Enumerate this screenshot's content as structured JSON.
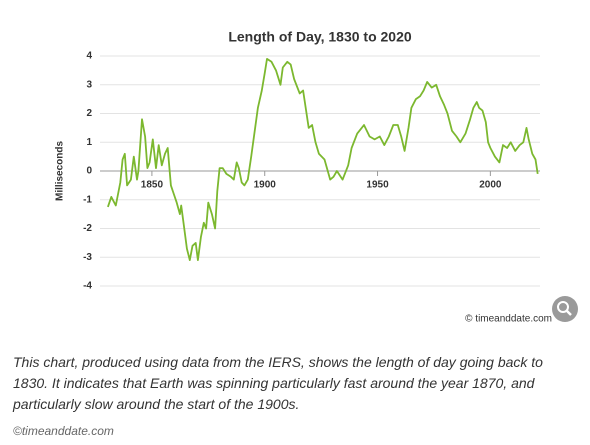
{
  "chart_data": {
    "type": "line",
    "title": "Length of Day, 1830 to 2020",
    "y_label": "Milliseconds",
    "x": [
      1830.5,
      1832,
      1834,
      1836,
      1837,
      1838,
      1839,
      1840.7,
      1842,
      1843.4,
      1844,
      1845.6,
      1847,
      1848,
      1849,
      1850.4,
      1851.8,
      1853,
      1854.4,
      1855.8,
      1857,
      1858.4,
      1859.7,
      1861,
      1862.4,
      1863,
      1864,
      1865.5,
      1866.8,
      1868,
      1869.4,
      1870.4,
      1871.7,
      1873,
      1874,
      1875,
      1876.6,
      1878,
      1879,
      1880,
      1881.4,
      1883,
      1885,
      1886.3,
      1887.6,
      1888.5,
      1889.8,
      1891,
      1892.5,
      1894,
      1897,
      1898.7,
      1900,
      1901,
      1903,
      1905,
      1907,
      1908,
      1910,
      1911.5,
      1913,
      1915.5,
      1917,
      1919.5,
      1921,
      1922.5,
      1924,
      1926.5,
      1929,
      1930.5,
      1932,
      1934.5,
      1937,
      1938.5,
      1941,
      1943,
      1944,
      1946.5,
      1948.7,
      1951,
      1953,
      1955,
      1957,
      1959,
      1960.5,
      1962,
      1963.7,
      1965,
      1967,
      1968.8,
      1970.4,
      1972,
      1974,
      1976,
      1977.7,
      1979.5,
      1981,
      1983,
      1985,
      1986.7,
      1989,
      1991,
      1992.5,
      1994,
      1995,
      1996.5,
      1998,
      1999,
      2000,
      2002,
      2004,
      2005.6,
      2007.4,
      2009,
      2011,
      2013,
      2014.6,
      2016,
      2017,
      2018.6,
      2020,
      2021
    ],
    "values": [
      -1.25,
      -0.9,
      -1.2,
      -0.4,
      0.4,
      0.6,
      -0.5,
      -0.3,
      0.5,
      -0.3,
      0.0,
      1.8,
      1.2,
      0.1,
      0.3,
      1.1,
      0.1,
      0.9,
      0.2,
      0.6,
      0.8,
      -0.5,
      -0.8,
      -1.1,
      -1.5,
      -1.2,
      -1.8,
      -2.7,
      -3.1,
      -2.6,
      -2.5,
      -3.1,
      -2.3,
      -1.8,
      -2.0,
      -1.1,
      -1.5,
      -2.0,
      -0.7,
      0.1,
      0.1,
      -0.1,
      -0.2,
      -0.3,
      0.3,
      0.1,
      -0.4,
      -0.5,
      -0.3,
      0.5,
      2.2,
      2.8,
      3.4,
      3.9,
      3.8,
      3.5,
      3.0,
      3.6,
      3.8,
      3.7,
      3.2,
      2.7,
      2.8,
      1.5,
      1.6,
      1.0,
      0.6,
      0.4,
      -0.3,
      -0.2,
      0.0,
      -0.3,
      0.2,
      0.8,
      1.3,
      1.5,
      1.6,
      1.2,
      1.1,
      1.2,
      0.9,
      1.2,
      1.6,
      1.6,
      1.2,
      0.7,
      1.5,
      2.2,
      2.5,
      2.6,
      2.8,
      3.1,
      2.9,
      3.0,
      2.6,
      2.3,
      2.0,
      1.4,
      1.2,
      1.0,
      1.3,
      1.8,
      2.2,
      2.4,
      2.2,
      2.1,
      1.7,
      1.0,
      0.8,
      0.5,
      0.3,
      0.9,
      0.8,
      1.0,
      0.7,
      0.9,
      1.0,
      1.5,
      1.1,
      0.6,
      0.4,
      -0.1
    ],
    "color": "#7cb82f",
    "xlim": [
      1827,
      2022
    ],
    "ylim": [
      -4,
      4
    ],
    "xticks": [
      1850,
      1900,
      1950,
      2000
    ],
    "yticks": [
      4,
      3,
      2,
      1,
      0,
      -1,
      -2,
      -3,
      -4
    ],
    "grid": true
  },
  "watermark": "© timeanddate.com",
  "caption": "This chart, produced using data from the IERS, shows the length of day going back to 1830. It indicates that Earth was spinning particularly fast around the year 1870, and particularly slow around the start of the 1900s.",
  "credit": "©timeanddate.com"
}
